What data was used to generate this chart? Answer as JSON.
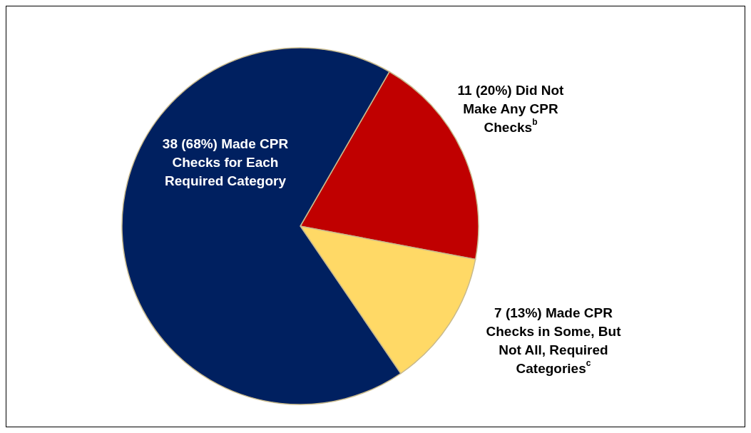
{
  "chart_data": {
    "type": "pie",
    "categories": [
      "Did Not Make Any CPR Checks$^{b}$",
      "Made CPR Checks in Some, But Not All, Required Categories$^{c}$",
      "Made CPR Checks for Each Required Category"
    ],
    "values": [
      11,
      7,
      38
    ],
    "value_labels": [
      "11 (20%)",
      "7 (13%)",
      "38 (68%)"
    ],
    "colors": [
      "#c00000",
      "#ffd966",
      "#002060"
    ],
    "legend": false
  }
}
